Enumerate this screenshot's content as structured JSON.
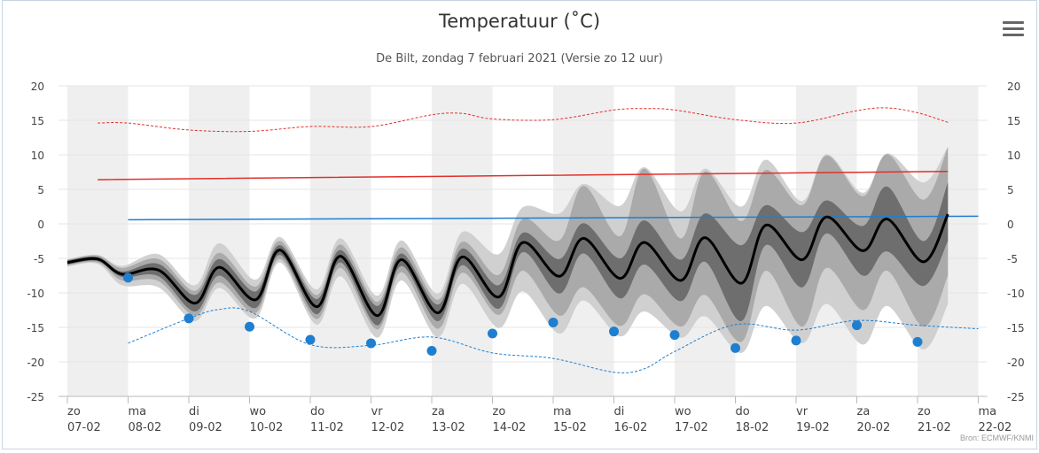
{
  "title": "Temperatuur (˚C)",
  "subtitle": "De Bilt, zondag 7 februari 2021 (Versie zo 12 uur)",
  "credit": "Bron: ECMWF/KNMI",
  "menu_icon": "hamburger-menu-icon",
  "colors": {
    "band_outer": "#d0d0d0",
    "band_mid": "#aaaaaa",
    "band_inner": "#6e6e6e",
    "median": "#000000",
    "normal_max": "#e0302a",
    "normal_min": "#1e7fd0",
    "record_max": "#e0302a",
    "record_min": "#1e7fd0",
    "observed_min": "#1e7fd0",
    "stripe": "#efefef"
  },
  "chart_data": {
    "type": "line",
    "ylim": [
      -25,
      20
    ],
    "yticks": [
      "20",
      "15",
      "10",
      "5",
      "0",
      "-5",
      "-10",
      "-15",
      "-20",
      "-25"
    ],
    "x_ticks": [
      {
        "day": "zo",
        "date": "07-02"
      },
      {
        "day": "ma",
        "date": "08-02"
      },
      {
        "day": "di",
        "date": "09-02"
      },
      {
        "day": "wo",
        "date": "10-02"
      },
      {
        "day": "do",
        "date": "11-02"
      },
      {
        "day": "vr",
        "date": "12-02"
      },
      {
        "day": "za",
        "date": "13-02"
      },
      {
        "day": "zo",
        "date": "14-02"
      },
      {
        "day": "ma",
        "date": "15-02"
      },
      {
        "day": "di",
        "date": "16-02"
      },
      {
        "day": "wo",
        "date": "17-02"
      },
      {
        "day": "do",
        "date": "18-02"
      },
      {
        "day": "vr",
        "date": "19-02"
      },
      {
        "day": "za",
        "date": "20-02"
      },
      {
        "day": "zo",
        "date": "21-02"
      },
      {
        "day": "ma",
        "date": "22-02"
      }
    ],
    "series": [
      {
        "key": "record_max",
        "x": [
          0.5,
          1,
          2,
          3,
          4,
          5,
          6,
          6.5,
          7,
          8,
          9,
          9.5,
          10,
          11,
          12,
          13,
          13.5,
          14,
          14.5
        ],
        "values": [
          14.6,
          14.6,
          13.6,
          13.4,
          14.1,
          14.1,
          15.8,
          16,
          15.2,
          15.1,
          16.5,
          16.7,
          16.5,
          15.1,
          14.6,
          16.4,
          16.8,
          16.1,
          14.7
        ]
      },
      {
        "key": "normal_max",
        "x": [
          0.5,
          14.5
        ],
        "values": [
          6.4,
          7.6
        ]
      },
      {
        "key": "normal_min",
        "x": [
          1,
          15
        ],
        "values": [
          0.6,
          1.1
        ]
      },
      {
        "key": "record_min",
        "x": [
          1,
          2,
          2.5,
          3,
          4,
          5,
          6,
          7,
          8,
          9,
          9.5,
          10,
          11,
          12,
          13,
          14,
          15
        ],
        "values": [
          -17.3,
          -13.7,
          -12.4,
          -12.7,
          -17.5,
          -17.6,
          -16.4,
          -18.7,
          -19.5,
          -21.5,
          -21.0,
          -18.5,
          -14.6,
          -15.4,
          -14,
          -14.7,
          -15.2
        ]
      },
      {
        "key": "median",
        "x": [
          0,
          0.5,
          0.9,
          1.5,
          2.1,
          2.5,
          3.1,
          3.5,
          4.1,
          4.5,
          5.1,
          5.5,
          6.1,
          6.5,
          7.1,
          7.5,
          8.1,
          8.5,
          9.1,
          9.5,
          10.1,
          10.5,
          11.1,
          11.5,
          12.1,
          12.5,
          13.1,
          13.5,
          14.1,
          14.5
        ],
        "values": [
          -5.6,
          -5.1,
          -7.3,
          -6.7,
          -11.5,
          -6.3,
          -11,
          -3.8,
          -12,
          -4.7,
          -13.3,
          -5.2,
          -12.9,
          -4.8,
          -10.6,
          -2.7,
          -7.6,
          -2.1,
          -7.9,
          -2.7,
          -8.2,
          -2,
          -8.6,
          -0.2,
          -5.2,
          1,
          -3.9,
          0.7,
          -5.5,
          1.4
        ]
      },
      {
        "key": "band_inner",
        "x": [
          0,
          0.5,
          0.9,
          1.5,
          2.1,
          2.5,
          3.1,
          3.5,
          4.1,
          4.5,
          5.1,
          5.5,
          6.1,
          6.5,
          7.1,
          7.5,
          8.1,
          8.5,
          9.1,
          9.5,
          10.1,
          10.5,
          11.1,
          11.5,
          12.1,
          12.5,
          13.1,
          13.5,
          14.1,
          14.5
        ],
        "upper": [
          -5.3,
          -4.8,
          -6.9,
          -5.8,
          -10.3,
          -5.1,
          -9.8,
          -3.1,
          -10.9,
          -3.8,
          -11.9,
          -4.3,
          -11.7,
          -3.6,
          -8.9,
          -1.3,
          -5.1,
          0.1,
          -5,
          0.5,
          -5.2,
          1.5,
          -3.1,
          2.7,
          -1.2,
          3.4,
          -0.3,
          5.4,
          -2.5,
          6.0
        ],
        "lower": [
          -5.9,
          -5.4,
          -7.7,
          -7.6,
          -12.7,
          -7.5,
          -12.2,
          -4.5,
          -13.1,
          -5.6,
          -14.7,
          -6.1,
          -14.1,
          -6,
          -12.3,
          -4.1,
          -10.1,
          -4.3,
          -10.8,
          -5.9,
          -11.2,
          -5.5,
          -14.1,
          -3.1,
          -9.2,
          -1.4,
          -7.5,
          -4,
          -9,
          -2.5
        ]
      },
      {
        "key": "band_mid",
        "x": [
          0,
          0.5,
          0.9,
          1.5,
          2.1,
          2.5,
          3.1,
          3.5,
          4.1,
          4.5,
          5.1,
          5.5,
          6.1,
          6.5,
          7.1,
          7.5,
          8.1,
          8.5,
          9.1,
          9.5,
          10.1,
          10.5,
          11.1,
          11.5,
          12.1,
          12.5,
          13.1,
          13.5,
          14.1,
          14.5
        ],
        "upper": [
          -5.2,
          -4.6,
          -6.4,
          -5.1,
          -9.7,
          -4.2,
          -9.1,
          -2.5,
          -10.3,
          -3,
          -11.3,
          -3.4,
          -11,
          -2.6,
          -7.4,
          0.7,
          -2.4,
          5.5,
          -1.8,
          8,
          -2.1,
          7.6,
          0.4,
          7.8,
          2.7,
          9.9,
          4,
          10.1,
          3.5,
          11.1
        ],
        "lower": [
          -6.0,
          -5.6,
          -8.2,
          -8.3,
          -13.3,
          -8.5,
          -12.9,
          -5.1,
          -13.8,
          -6.4,
          -15.3,
          -7,
          -15.2,
          -7.1,
          -13.2,
          -6.8,
          -13.3,
          -9.2,
          -14.8,
          -10.2,
          -14.9,
          -10.3,
          -17.1,
          -6.8,
          -14.9,
          -6.4,
          -12.5,
          -6.8,
          -14.9,
          -7.5
        ]
      },
      {
        "key": "band_outer",
        "x": [
          0,
          0.5,
          0.9,
          1.5,
          2.1,
          2.5,
          3.1,
          3.5,
          4.1,
          4.5,
          5.1,
          5.5,
          6.1,
          6.5,
          7.1,
          7.5,
          8.1,
          8.5,
          9.1,
          9.5,
          10.1,
          10.5,
          11.1,
          11.5,
          12.1,
          12.5,
          13.1,
          13.5,
          14.1,
          14.5
        ],
        "upper": [
          -5.1,
          -4.5,
          -6.1,
          -4.4,
          -8.9,
          -2.8,
          -8.1,
          -1.9,
          -9.5,
          -2.1,
          -10.4,
          -2.4,
          -10.1,
          -1.2,
          -4.4,
          2.4,
          1.5,
          5.8,
          2.6,
          8.2,
          1.8,
          8,
          2.5,
          9.3,
          3.3,
          10.1,
          4.5,
          10.2,
          6,
          11.2
        ],
        "lower": [
          -6.2,
          -5.8,
          -8.9,
          -9.2,
          -14.1,
          -9.3,
          -13.7,
          -5.6,
          -14.6,
          -7.6,
          -16.5,
          -8.2,
          -16.4,
          -8.7,
          -15.1,
          -9.8,
          -15.9,
          -11.1,
          -16.3,
          -12.7,
          -16.5,
          -13.4,
          -18.7,
          -11.9,
          -17.3,
          -11.6,
          -17.5,
          -11.9,
          -18.2,
          -11.6
        ]
      }
    ],
    "observed_min": [
      {
        "x": 1,
        "y": -7.8
      },
      {
        "x": 2,
        "y": -13.7
      },
      {
        "x": 3,
        "y": -14.9
      },
      {
        "x": 4,
        "y": -16.8
      },
      {
        "x": 5,
        "y": -17.3
      },
      {
        "x": 6,
        "y": -18.4
      },
      {
        "x": 7,
        "y": -15.9
      },
      {
        "x": 8,
        "y": -14.3
      },
      {
        "x": 9,
        "y": -15.6
      },
      {
        "x": 10,
        "y": -16.1
      },
      {
        "x": 11,
        "y": -18
      },
      {
        "x": 12,
        "y": -16.9
      },
      {
        "x": 13,
        "y": -14.7
      },
      {
        "x": 14,
        "y": -17.1
      }
    ]
  }
}
